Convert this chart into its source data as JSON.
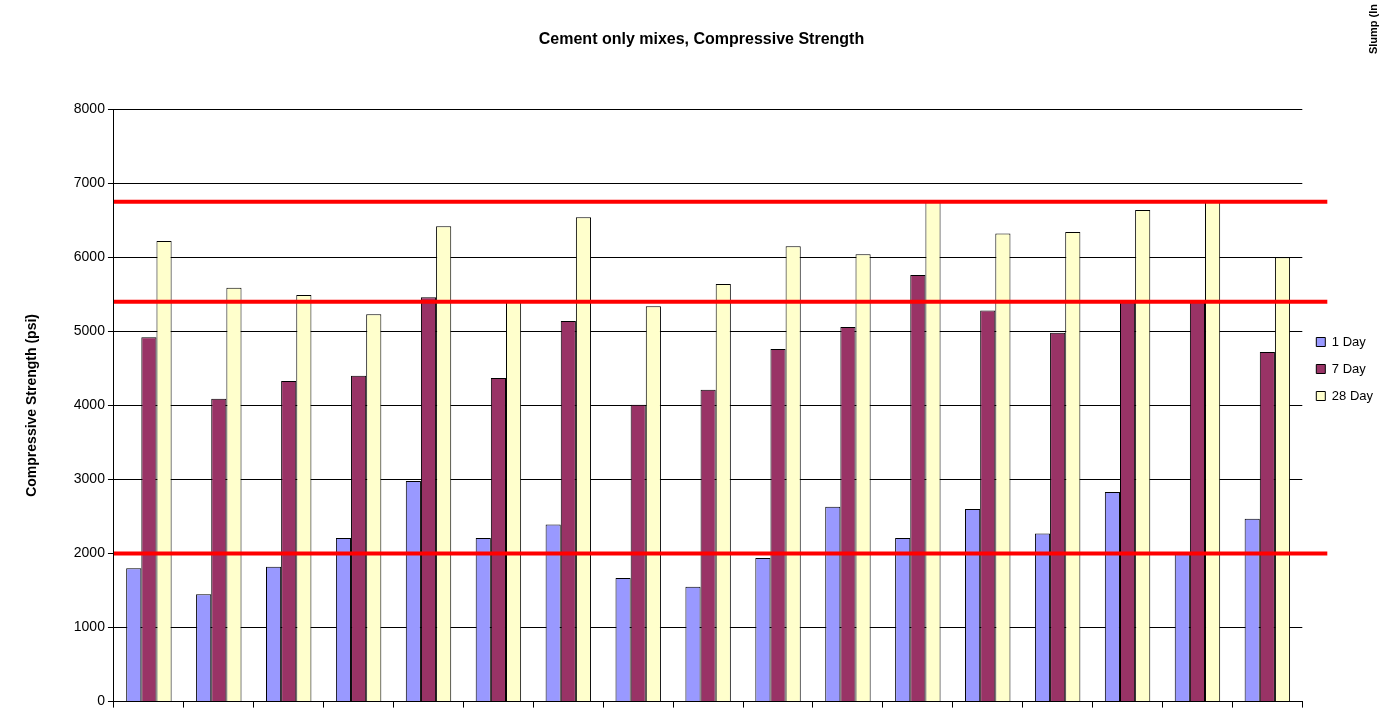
{
  "chart_data": {
    "type": "bar",
    "title": "Cement only mixes, Compressive Strength",
    "ylabel": "Compressive Strength (psi)",
    "categories": [
      null,
      null,
      null,
      null,
      null,
      null,
      null,
      null,
      null,
      null,
      null,
      null,
      null,
      null,
      null,
      null,
      null
    ],
    "series": [
      {
        "name": "1 Day",
        "color": "#9999ff",
        "values": [
          1800,
          1450,
          1820,
          2210,
          2980,
          2210,
          2390,
          1670,
          1550,
          1940,
          2630,
          2210,
          2600,
          2270,
          2830,
          2000,
          2470
        ]
      },
      {
        "name": "7 Day",
        "color": "#993366",
        "values": [
          4920,
          4090,
          4330,
          4400,
          5460,
          4370,
          5140,
          4010,
          4210,
          4760,
          5060,
          5760,
          5280,
          4980,
          5400,
          5400,
          4720
        ]
      },
      {
        "name": "28 Day",
        "color": "#ffffcc",
        "values": [
          6220,
          5590,
          5490,
          5230,
          6420,
          5400,
          6540,
          5340,
          5640,
          6150,
          6040,
          6750,
          6320,
          6340,
          6640,
          6750,
          6000
        ]
      }
    ],
    "ylim": [
      0,
      8000
    ],
    "yticks": [
      0,
      1000,
      2000,
      3000,
      4000,
      5000,
      6000,
      7000,
      8000
    ],
    "grid": "y",
    "legend": "right",
    "ref_lines": [
      {
        "axis": "y",
        "value": 6750,
        "color": "#ff0000"
      },
      {
        "axis": "y",
        "value": 5400,
        "color": "#ff0000"
      },
      {
        "axis": "y",
        "value": 2000,
        "color": "#ff0000"
      }
    ],
    "annotations": [
      "Slump (In"
    ]
  }
}
